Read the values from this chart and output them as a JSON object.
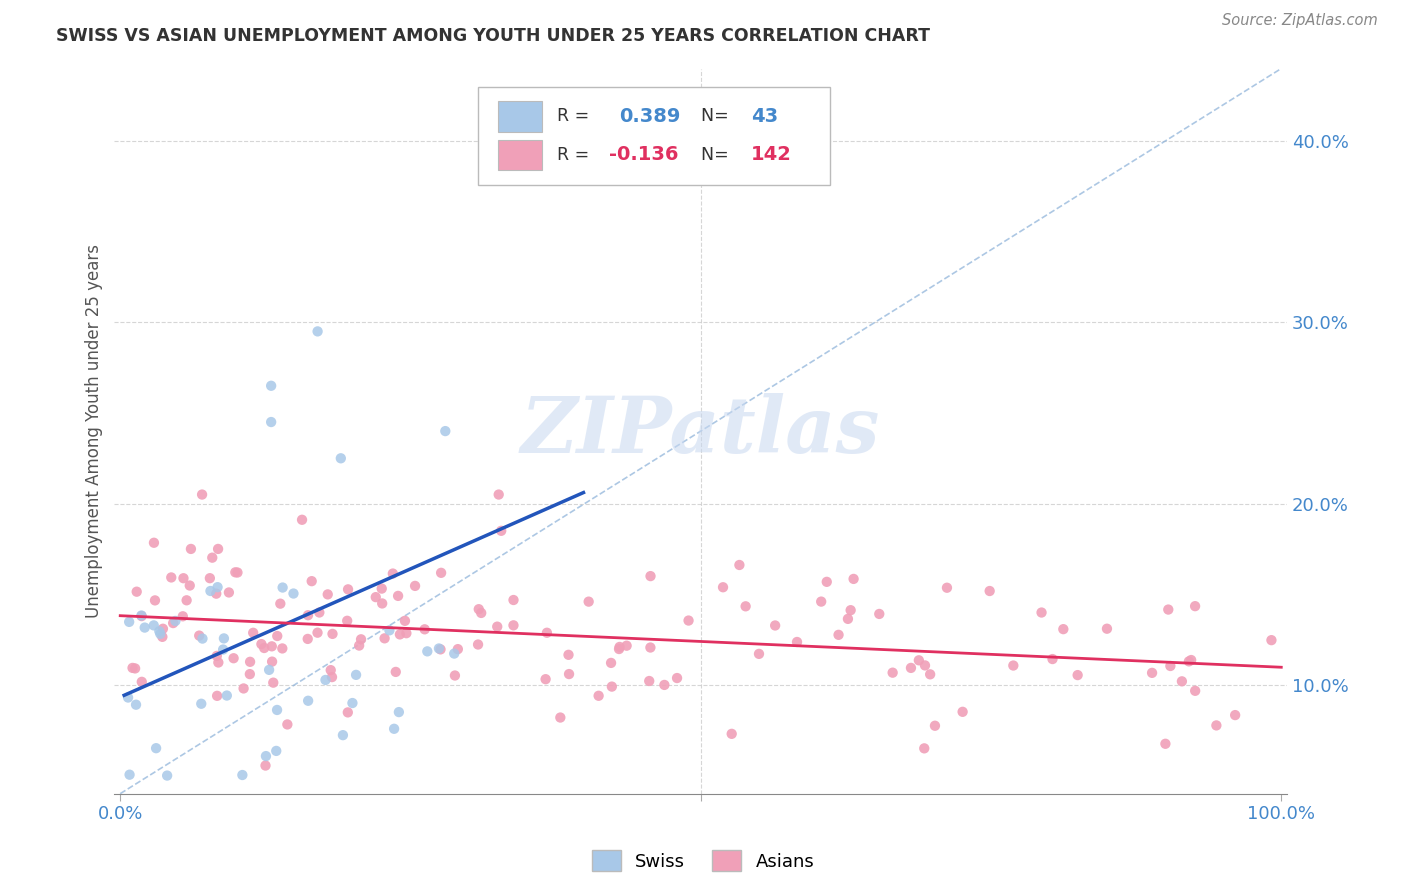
{
  "title": "SWISS VS ASIAN UNEMPLOYMENT AMONG YOUTH UNDER 25 YEARS CORRELATION CHART",
  "source": "Source: ZipAtlas.com",
  "ylabel": "Unemployment Among Youth under 25 years",
  "legend_swiss": "Swiss",
  "legend_asians": "Asians",
  "swiss_color": "#a8c8e8",
  "asian_color": "#f0a0b8",
  "swiss_line_color": "#2255bb",
  "asian_line_color": "#e03060",
  "diagonal_color": "#8ab0d8",
  "background_color": "#ffffff",
  "tick_color": "#4488cc",
  "grid_color": "#cccccc",
  "xlim": [
    0.0,
    1.0
  ],
  "ylim": [
    0.04,
    0.44
  ],
  "yticks": [
    0.1,
    0.2,
    0.3,
    0.4
  ],
  "ytick_labels": [
    "10.0%",
    "20.0%",
    "30.0%",
    "40.0%"
  ],
  "xticks": [
    0.0,
    0.5,
    1.0
  ],
  "xtick_labels": [
    "0.0%",
    "",
    "100.0%"
  ],
  "swiss_seed": 17,
  "asian_seed": 99
}
